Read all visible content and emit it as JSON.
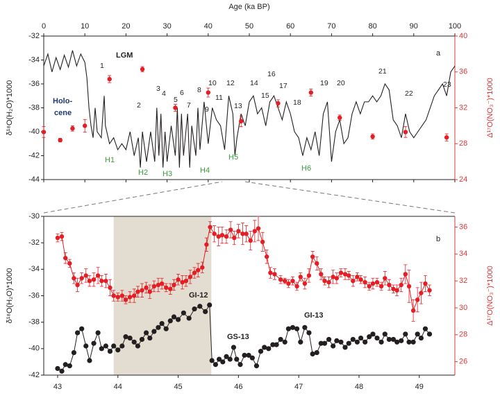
{
  "chart_data": [
    {
      "type": "line",
      "panel_label": "a",
      "x_label": "Age (ka BP)",
      "y_label": "δ¹⁸O(H₂O)*1000",
      "y2_label": "Δ¹⁷O(NO₃⁻)*1000",
      "y2_color": "#d9383a",
      "xlim": [
        0,
        100
      ],
      "xticks": [
        0,
        10,
        20,
        30,
        40,
        50,
        60,
        70,
        80,
        90,
        100
      ],
      "ylim": [
        -44,
        -32
      ],
      "yticks": [
        -44,
        -42,
        -40,
        -38,
        -36,
        -34,
        -32
      ],
      "y2lim": [
        24,
        40
      ],
      "y2ticks": [
        24,
        28,
        32,
        36,
        40
      ],
      "period_labels": [
        "LGM",
        "Holo-",
        "cene"
      ],
      "annotations": [
        "1",
        "2",
        "3",
        "4",
        "5",
        "6",
        "7",
        "8",
        "9",
        "10",
        "11",
        "12",
        "13",
        "14",
        "15",
        "16",
        "17",
        "18",
        "19",
        "20",
        "21",
        "22",
        "23"
      ],
      "events": [
        "H1",
        "H2",
        "H3",
        "H4",
        "H5",
        "H6"
      ],
      "series": [
        {
          "color": "#231f20",
          "line": true,
          "marker": false,
          "x": [
            0,
            1,
            2,
            3,
            4,
            5,
            6,
            7,
            8,
            9,
            10,
            10.5,
            11,
            11.5,
            12,
            12.5,
            13,
            14,
            14.7,
            15,
            16,
            17,
            18,
            19,
            20,
            21,
            22,
            23,
            23.5,
            24,
            25,
            26,
            27,
            27.5,
            28,
            28.5,
            29,
            29.5,
            30,
            31,
            32,
            32.5,
            33,
            33.5,
            34,
            35,
            35.5,
            36,
            37,
            37.5,
            38,
            39,
            40,
            41,
            42,
            43,
            44,
            45,
            46,
            46.5,
            47,
            48,
            49,
            50,
            51,
            52,
            53,
            54,
            55,
            56,
            57,
            58,
            59,
            60,
            61,
            62,
            63,
            64,
            65,
            66,
            67,
            68,
            69,
            70,
            71,
            72,
            73,
            74,
            75,
            76,
            77,
            78,
            79,
            80,
            81,
            82,
            83,
            84,
            85,
            86,
            87,
            88,
            89,
            90,
            91,
            92,
            93,
            94,
            95,
            96,
            97,
            98,
            99,
            100
          ],
          "values": [
            -34.5,
            -33.5,
            -35,
            -33.8,
            -34.8,
            -33.6,
            -34.6,
            -33.2,
            -34.5,
            -33.5,
            -34.2,
            -35.5,
            -38,
            -39.5,
            -40.5,
            -38,
            -40,
            -40.5,
            -37,
            -39.5,
            -41,
            -40.5,
            -41.5,
            -41,
            -41.5,
            -40,
            -42,
            -40.5,
            -43,
            -40,
            -42.5,
            -40,
            -42.5,
            -38,
            -42,
            -38.5,
            -43,
            -40,
            -42.5,
            -39.5,
            -42,
            -38,
            -43,
            -38.5,
            -42,
            -38.5,
            -43,
            -39.5,
            -42,
            -38,
            -41.5,
            -37.5,
            -41,
            -38,
            -39,
            -39.5,
            -41.5,
            -37,
            -38.5,
            -42,
            -40.5,
            -38.5,
            -39.5,
            -37.5,
            -37,
            -38.5,
            -38,
            -39.5,
            -37.5,
            -37,
            -38,
            -39,
            -37.5,
            -38.5,
            -40,
            -40.5,
            -42,
            -40.5,
            -41.5,
            -40,
            -42,
            -38.5,
            -37.5,
            -42.5,
            -40,
            -39,
            -41,
            -40.5,
            -38.5,
            -37.5,
            -38.5,
            -37.5,
            -37.5,
            -37,
            -37.5,
            -37,
            -36,
            -36.5,
            -39,
            -39.5,
            -40.5,
            -38.5,
            -40,
            -40.5,
            -40,
            -39.5,
            -39,
            -38,
            -37,
            -36.5,
            -36,
            -37,
            -35,
            -34.5
          ]
        },
        {
          "color": "#e31e24",
          "axis": "y2",
          "line": false,
          "marker": true,
          "x": [
            0,
            4,
            7,
            10,
            16,
            24,
            32,
            40,
            48,
            57,
            65,
            72,
            80,
            88,
            98
          ],
          "values": [
            29.3,
            28.4,
            29.7,
            30,
            35.2,
            36.3,
            32,
            33.7,
            30.5,
            32.5,
            33.7,
            30.9,
            28.8,
            29.3,
            28.7
          ],
          "errors": [
            0.6,
            0.2,
            0.3,
            0.7,
            0.4,
            0.3,
            0.4,
            0.5,
            0.6,
            0.4,
            0.4,
            0.3,
            0.3,
            0.6,
            0.4
          ]
        }
      ]
    },
    {
      "type": "line",
      "panel_label": "b",
      "y_label": "δ¹⁸O(H₂O)*1000",
      "y2_label": "Δ¹⁷O(NO₃⁻)*1000",
      "y2_color": "#d9383a",
      "xlim": [
        42.77,
        49.59
      ],
      "xticks": [
        43,
        44,
        45,
        46,
        47,
        48,
        49
      ],
      "ylim": [
        -42,
        -30
      ],
      "yticks": [
        -42,
        -40,
        -38,
        -36,
        -34,
        -32,
        -30
      ],
      "y2lim": [
        25,
        36.8
      ],
      "y2ticks": [
        26,
        28,
        30,
        32,
        34,
        36
      ],
      "shaded_span": [
        43.93,
        45.55
      ],
      "shade_color": "#e2ddd0",
      "interval_labels": [
        "GI-12",
        "GS-13",
        "GI-13"
      ],
      "series": [
        {
          "color": "#231f20",
          "line": true,
          "marker": true,
          "x": [
            43,
            43.07,
            43.13,
            43.2,
            43.27,
            43.33,
            43.4,
            43.47,
            43.53,
            43.6,
            43.67,
            43.73,
            43.8,
            43.87,
            43.93,
            44,
            44.07,
            44.13,
            44.2,
            44.27,
            44.33,
            44.4,
            44.47,
            44.53,
            44.6,
            44.67,
            44.73,
            44.8,
            44.87,
            44.93,
            45,
            45.09,
            45.18,
            45.27,
            45.36,
            45.45,
            45.52,
            45.56,
            45.62,
            45.68,
            45.74,
            45.8,
            45.86,
            45.92,
            45.97,
            46.03,
            46.1,
            46.17,
            46.23,
            46.3,
            46.37,
            46.43,
            46.5,
            46.57,
            46.63,
            46.7,
            46.77,
            46.83,
            46.9,
            46.97,
            47.03,
            47.1,
            47.17,
            47.23,
            47.3,
            47.37,
            47.43,
            47.5,
            47.57,
            47.63,
            47.7,
            47.77,
            47.83,
            47.9,
            47.97,
            48.03,
            48.1,
            48.17,
            48.23,
            48.3,
            48.37,
            48.43,
            48.5,
            48.57,
            48.63,
            48.7,
            48.77,
            48.83,
            48.9,
            48.97,
            49.03,
            49.1,
            49.17
          ],
          "values": [
            -41.5,
            -41.7,
            -41.2,
            -41.3,
            -40.3,
            -38.8,
            -38.5,
            -39.8,
            -40.9,
            -39.6,
            -38.8,
            -40,
            -39.8,
            -40.2,
            -39.8,
            -40.1,
            -39.8,
            -39.1,
            -39.2,
            -39.5,
            -39.8,
            -39.3,
            -38.8,
            -39.2,
            -38.7,
            -38.4,
            -38.1,
            -38.5,
            -37.9,
            -37.6,
            -37.8,
            -37.3,
            -37.7,
            -37,
            -36.8,
            -37.2,
            -36.7,
            -40.9,
            -41.2,
            -40.8,
            -41,
            -40.6,
            -40.8,
            -39.9,
            -40.8,
            -41.2,
            -40.5,
            -40.5,
            -40.7,
            -41.3,
            -40.2,
            -39.9,
            -40,
            -39.7,
            -39.7,
            -39.3,
            -39.5,
            -38.5,
            -38.4,
            -38.5,
            -39.5,
            -38.4,
            -38.8,
            -40.4,
            -40.3,
            -39.6,
            -39.6,
            -39.3,
            -39.8,
            -39.4,
            -39.5,
            -39.9,
            -39.6,
            -39.3,
            -39.5,
            -39.2,
            -39.5,
            -39.1,
            -38.9,
            -39.2,
            -39.5,
            -38.9,
            -39.3,
            -39.3,
            -39.5,
            -39.4,
            -38.9,
            -39.5,
            -39.5,
            -38.9,
            -39.2,
            -38.5,
            -38.9
          ]
        },
        {
          "color": "#e31e24",
          "axis": "y2",
          "line": true,
          "marker": true,
          "x": [
            43,
            43.07,
            43.13,
            43.2,
            43.27,
            43.33,
            43.4,
            43.47,
            43.53,
            43.6,
            43.67,
            43.73,
            43.8,
            43.87,
            43.93,
            44,
            44.07,
            44.13,
            44.2,
            44.27,
            44.33,
            44.4,
            44.47,
            44.53,
            44.6,
            44.67,
            44.73,
            44.8,
            44.87,
            44.93,
            45,
            45.07,
            45.13,
            45.2,
            45.27,
            45.33,
            45.4,
            45.47,
            45.53,
            45.6,
            45.67,
            45.73,
            45.8,
            45.87,
            45.93,
            46,
            46.07,
            46.13,
            46.2,
            46.27,
            46.33,
            46.4,
            46.47,
            46.53,
            46.6,
            46.7,
            46.77,
            46.83,
            46.9,
            46.97,
            47.03,
            47.1,
            47.17,
            47.23,
            47.3,
            47.37,
            47.43,
            47.5,
            47.57,
            47.63,
            47.7,
            47.77,
            47.83,
            47.9,
            47.97,
            48.03,
            48.1,
            48.17,
            48.23,
            48.3,
            48.37,
            48.43,
            48.5,
            48.57,
            48.63,
            48.7,
            48.77,
            48.83,
            48.9,
            48.97,
            49.03,
            49.1,
            49.17
          ],
          "values": [
            35.2,
            35.3,
            33.7,
            33.3,
            32.2,
            31.7,
            32.2,
            32.4,
            32,
            32.1,
            32.4,
            32,
            32,
            31.5,
            30.9,
            30.8,
            30.9,
            30.6,
            30.8,
            30.9,
            31.2,
            31.3,
            31.5,
            31.2,
            31.6,
            31.7,
            31.8,
            31.5,
            31.4,
            31.7,
            32.1,
            31.9,
            32,
            32.3,
            32.6,
            32.8,
            33,
            34.7,
            36,
            35.5,
            35.3,
            35.4,
            35.3,
            35.8,
            35.2,
            35.7,
            35.5,
            35.5,
            35,
            35.7,
            35.9,
            34.9,
            33.8,
            32.6,
            32.5,
            32.1,
            32,
            31.8,
            32,
            31.6,
            32.3,
            31.8,
            32.4,
            33.8,
            33.3,
            32.5,
            32,
            31.9,
            32.3,
            32.2,
            32.6,
            32.5,
            32.4,
            32,
            32.3,
            32.1,
            31.9,
            31.6,
            31.8,
            31.9,
            31.6,
            32.2,
            31.7,
            31.4,
            31.3,
            31.7,
            32.5,
            31.6,
            29.8,
            30.6,
            31.1,
            31.8,
            31.3
          ],
          "errors": [
            0.3,
            0.3,
            0.4,
            0.3,
            0.4,
            0.5,
            0.4,
            0.5,
            0.4,
            0.5,
            0.6,
            0.4,
            0.5,
            0.6,
            0.4,
            0.3,
            0.4,
            0.3,
            0.4,
            0.5,
            0.4,
            0.5,
            0.4,
            0.5,
            0.4,
            0.5,
            0.4,
            0.3,
            0.4,
            0.4,
            0.4,
            0.5,
            0.4,
            0.5,
            0.4,
            0.5,
            0.4,
            0.5,
            0.4,
            0.6,
            0.7,
            0.6,
            0.5,
            0.6,
            0.5,
            0.5,
            0.8,
            0.6,
            0.7,
            0.8,
            0.9,
            0.7,
            0.5,
            0.4,
            0.4,
            0.3,
            0.2,
            0.3,
            0.3,
            0.3,
            0.3,
            0.4,
            0.5,
            0.4,
            0.5,
            0.4,
            0.3,
            0.4,
            0.5,
            0.4,
            0.3,
            0.4,
            0.3,
            0.4,
            0.3,
            0.3,
            0.4,
            0.3,
            0.4,
            0.3,
            0.3,
            0.5,
            0.4,
            0.3,
            0.4,
            0.5,
            0.7,
            1.2,
            0.8,
            0.9,
            0.8,
            0.6,
            0.4
          ]
        }
      ]
    }
  ]
}
